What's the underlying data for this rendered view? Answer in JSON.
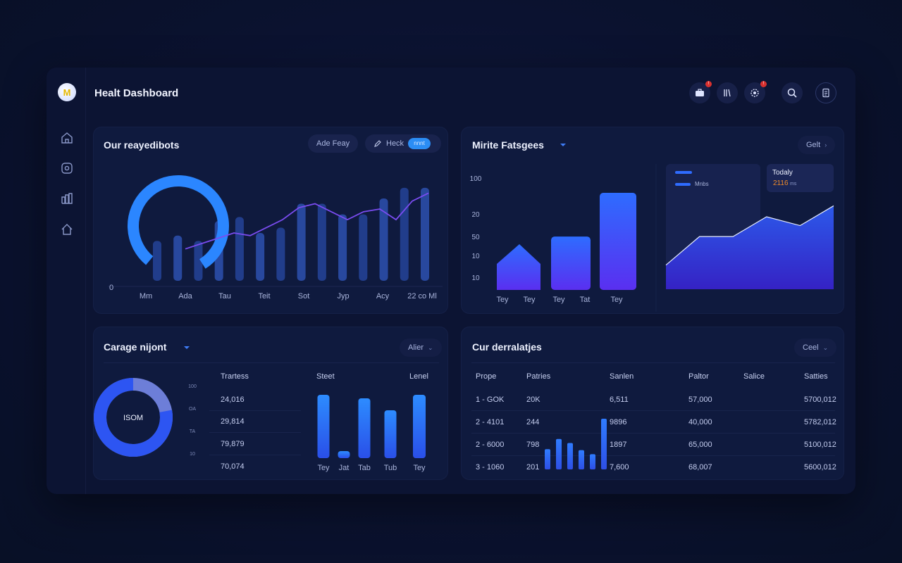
{
  "header": {
    "title": "Healt Dashboard",
    "logo_letter": "M",
    "notification_badges": [
      "!",
      "",
      "!"
    ]
  },
  "sidebar": {
    "items": [
      {
        "icon": "home-icon"
      },
      {
        "icon": "record-icon"
      },
      {
        "icon": "report-icon"
      },
      {
        "icon": "house-icon"
      }
    ]
  },
  "panel1": {
    "title": "Our reayedibots",
    "pill1": "Ade Feay",
    "pill2": "Heck",
    "toggle": "nnnt",
    "zero_label": "0",
    "x_labels": [
      "Mm",
      "Ada",
      "Tau",
      "Teit",
      "Sot",
      "Jyp",
      "Acy",
      "22 co Ml"
    ],
    "chart_data": {
      "type": "bar",
      "bars": [
        30,
        34,
        30,
        45,
        48,
        36,
        40,
        58,
        58,
        50,
        50,
        62,
        70,
        70
      ],
      "line": [
        24,
        28,
        32,
        36,
        34,
        40,
        46,
        55,
        58,
        52,
        46,
        52,
        54,
        46,
        60,
        66
      ],
      "donut_fraction": 0.8,
      "ylim": [
        0,
        100
      ]
    }
  },
  "panel2": {
    "title": "Mirite Fatsgees",
    "button": "Gelt",
    "y_labels": [
      "100",
      "20",
      "50",
      "10",
      "10"
    ],
    "x_labels": [
      "Tey",
      "Tey",
      "Tey",
      "Tat",
      "Tey"
    ],
    "legend": {
      "item2": "Mnbs"
    },
    "today_card": {
      "label": "Todaly",
      "value": "2116",
      "unit": "ms"
    },
    "chart_data": {
      "type": "bar",
      "values": [
        50,
        55,
        100
      ],
      "area": {
        "type": "area",
        "values": [
          22,
          48,
          48,
          66,
          58,
          76
        ]
      }
    }
  },
  "panel3": {
    "title": "Carage nijont",
    "button": "Alier",
    "donut_label": "ISOM",
    "donut_ticks": [
      "100",
      "OA",
      "TA",
      "10"
    ],
    "col_headers": [
      "Trartess",
      "Steet",
      "Lenel"
    ],
    "values": [
      "24,016",
      "29,814",
      "79,879",
      "70,074"
    ],
    "x_labels": [
      "Tey",
      "Jat",
      "Tab",
      "Tub",
      "Tey"
    ],
    "chart_data": {
      "type": "bar",
      "values": [
        90,
        10,
        85,
        68,
        90
      ],
      "donut_fraction": 0.78
    }
  },
  "panel4": {
    "title": "Cur derralatjes",
    "button": "Ceel",
    "columns": [
      "Prope",
      "Patries",
      "Sanlen",
      "Paltor",
      "Salice",
      "Satties"
    ],
    "rows": [
      [
        "1 - GOK",
        "20K",
        "6,511",
        "57,000",
        "",
        "5700,012"
      ],
      [
        "2 - 4101",
        "244",
        "9896",
        "40,000",
        "",
        "5782,012"
      ],
      [
        "2 - 6000",
        "798",
        "1897",
        "65,000",
        "",
        "5100,012"
      ],
      [
        "3 - 1060",
        "201",
        "7,600",
        "68,007",
        "",
        "5600,012"
      ]
    ],
    "chart_data": {
      "type": "bar",
      "values": [
        40,
        60,
        52,
        38,
        30,
        100
      ]
    }
  },
  "colors": {
    "accent": "#2f86ff",
    "violet": "#6a3cf6",
    "card": "#0f1a3e"
  }
}
